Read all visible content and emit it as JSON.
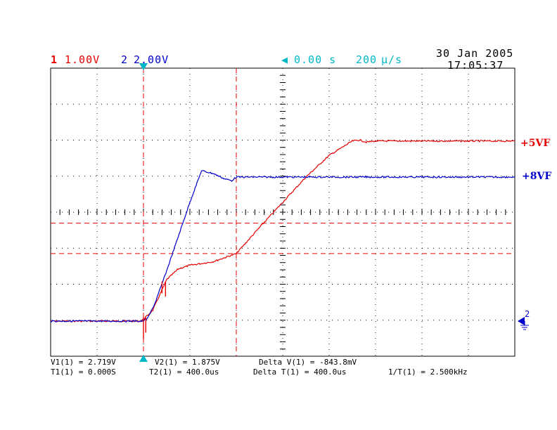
{
  "header": {
    "ch1_num": "1",
    "ch1_scale": "1.00V",
    "ch2_num": "2",
    "ch2_scale": "2.00V",
    "time_offset": "0.00 s",
    "time_base_num": "200",
    "time_base_unit": "μ/s",
    "date": "30 Jan 2005",
    "time": "17:05:37"
  },
  "colors": {
    "ch1": "#e60000",
    "ch2": "#0000cc",
    "cursor_marker": "#00b8c8",
    "grid": "#000000"
  },
  "footer": {
    "v1": "V1(1) = 2.719V",
    "v2": "V2(1) = 1.875V",
    "delta_v": "Delta V(1) = -843.8mV",
    "t1": "T1(1) = 0.000S",
    "t2": "T2(1) = 400.0us",
    "delta_t": "Delta T(1) = 400.0us",
    "inv_t": "1/T(1) = 2.500kHz"
  },
  "trace_labels": {
    "ch1": "+5VF",
    "ch2": "+8VF"
  },
  "chart_data": {
    "type": "line",
    "x_unit": "us",
    "xlim": [
      -400,
      1600
    ],
    "grid": true,
    "cursors": {
      "t1_us": 0,
      "t2_us": 400,
      "v1_V": 2.719,
      "v2_V": 1.875
    },
    "series": [
      {
        "name": "+5VF",
        "unit": "V",
        "x": [
          -400,
          -10,
          0,
          40,
          100,
          150,
          200,
          300,
          400,
          500,
          600,
          700,
          800,
          900,
          930,
          960,
          1000,
          1200,
          1400,
          1600
        ],
        "values": [
          0.0,
          0.0,
          0.05,
          0.3,
          1.15,
          1.45,
          1.55,
          1.65,
          1.875,
          2.6,
          3.3,
          4.0,
          4.6,
          5.0,
          5.03,
          4.97,
          5.0,
          5.0,
          5.0,
          5.0
        ]
      },
      {
        "name": "+8VF",
        "unit": "V",
        "x": [
          -400,
          -10,
          0,
          20,
          50,
          100,
          150,
          200,
          250,
          300,
          350,
          380,
          400,
          600,
          800,
          1000,
          1200,
          1400,
          1600
        ],
        "values": [
          0.0,
          0.0,
          0.0,
          0.2,
          1.0,
          2.8,
          4.7,
          6.6,
          8.35,
          8.2,
          7.9,
          7.8,
          8.0,
          8.0,
          8.0,
          8.0,
          8.0,
          8.0,
          8.0
        ]
      }
    ]
  }
}
